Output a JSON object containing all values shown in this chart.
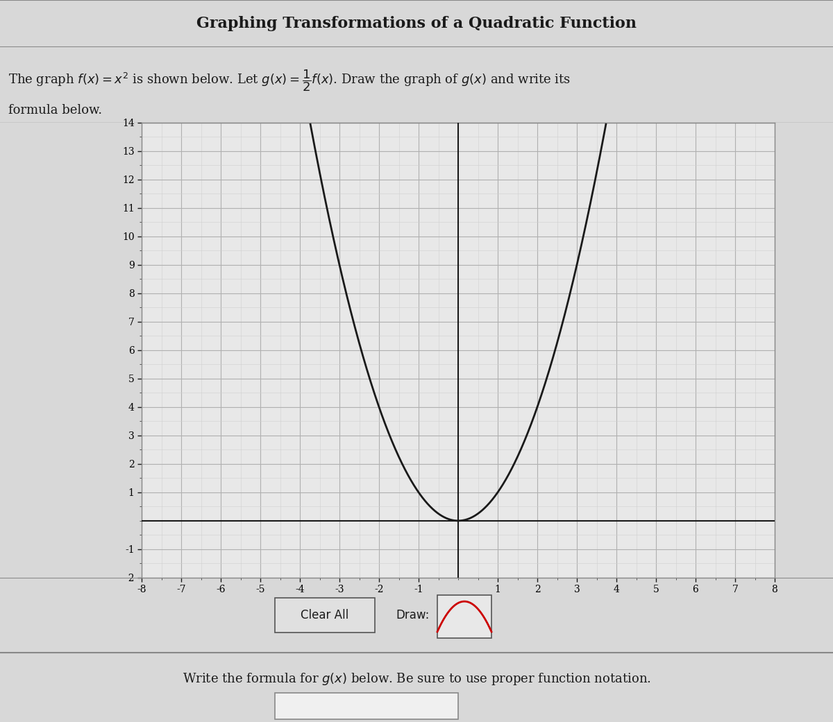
{
  "title": "Graphing Transformations of a Quadratic Function",
  "instruction_line1": "The graph $f(x) = x^2$ is shown below. Let $g(x) = \\dfrac{1}{2}f(x)$. Draw the graph of $g(x)$ and write its",
  "instruction_line2": "formula below.",
  "xmin": -8,
  "xmax": 8,
  "ymin": -2,
  "ymax": 14,
  "x_ticks": [
    -8,
    -7,
    -6,
    -5,
    -4,
    -3,
    -2,
    -1,
    1,
    2,
    3,
    4,
    5,
    6,
    7,
    8
  ],
  "y_ticks": [
    -2,
    -1,
    1,
    2,
    3,
    4,
    5,
    6,
    7,
    8,
    9,
    10,
    11,
    12,
    13,
    14
  ],
  "curve_color": "#1a1a1a",
  "grid_color": "#b0b0b0",
  "grid_minor_color": "#d0d0d0",
  "axis_color": "#1a1a1a",
  "bg_color": "#d8d8d8",
  "plot_bg_color": "#e8e8e8",
  "title_bg_color": "#c8c8c8",
  "bottom_bg_color": "#d0d0d0",
  "clear_all_label": "Clear All",
  "draw_label": "Draw:",
  "formula_prompt": "Write the formula for $g(x)$ below. Be sure to use proper function notation."
}
